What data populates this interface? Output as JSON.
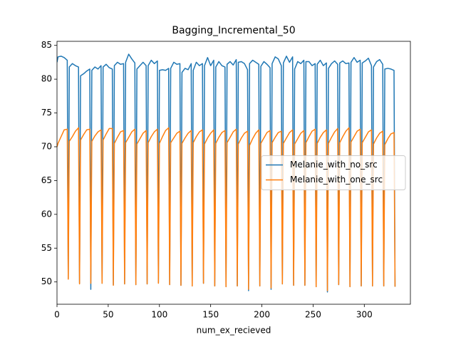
{
  "chart_data": {
    "type": "line",
    "title": "Bagging_Incremental_50",
    "xlabel": "num_ex_recieved",
    "x": [
      0,
      1,
      4,
      7,
      10,
      11,
      12,
      15,
      18,
      21,
      22,
      23,
      26,
      29,
      32,
      33,
      34,
      37,
      40,
      43,
      44,
      45,
      48,
      51,
      54,
      55,
      56,
      59,
      62,
      65,
      66,
      67,
      70,
      73,
      76,
      77,
      78,
      81,
      84,
      87,
      88,
      89,
      92,
      95,
      98,
      99,
      100,
      103,
      106,
      109,
      110,
      111,
      114,
      117,
      120,
      121,
      122,
      125,
      128,
      131,
      132,
      133,
      136,
      139,
      142,
      143,
      144,
      147,
      150,
      153,
      154,
      155,
      158,
      161,
      164,
      165,
      166,
      169,
      172,
      175,
      176,
      177,
      180,
      183,
      186,
      187,
      188,
      191,
      194,
      197,
      198,
      199,
      202,
      205,
      208,
      209,
      210,
      213,
      216,
      219,
      220,
      221,
      224,
      227,
      230,
      231,
      232,
      235,
      238,
      241,
      242,
      243,
      246,
      249,
      252,
      253,
      254,
      257,
      260,
      263,
      264,
      265,
      268,
      271,
      274,
      275,
      276,
      279,
      282,
      285,
      286,
      287,
      290,
      293,
      296,
      297,
      298,
      301,
      304,
      307,
      308,
      309,
      312,
      315,
      318,
      319,
      320,
      323,
      326,
      329,
      330
    ],
    "series": [
      {
        "name": "Melanie_with_no_src",
        "color": "#1f77b4",
        "values": [
          82.5,
          83.3,
          83.4,
          83.2,
          82.8,
          50.5,
          81.8,
          82.3,
          82,
          81.8,
          49.8,
          80.5,
          80.8,
          81.2,
          81.5,
          48.9,
          81.3,
          81.8,
          81.5,
          82,
          49.8,
          81.8,
          82.2,
          81.7,
          81.5,
          49.6,
          82,
          82.5,
          82.2,
          82.3,
          49.7,
          82.5,
          83.7,
          83,
          82.4,
          49.6,
          81.5,
          82,
          82.5,
          82,
          49.7,
          82,
          82.8,
          82.3,
          82.7,
          49.9,
          81.3,
          81.4,
          81.3,
          81.6,
          49.6,
          81.6,
          82.5,
          82.2,
          82.3,
          49.5,
          81,
          81.6,
          81.4,
          82.3,
          49.4,
          81.3,
          82.5,
          82,
          82.3,
          49.8,
          82,
          83.2,
          82,
          82.8,
          49.4,
          81.8,
          82.6,
          82,
          81.8,
          49.3,
          82.2,
          82.6,
          82.1,
          82.9,
          49.4,
          82.5,
          82.6,
          82.3,
          81.4,
          48.7,
          82.3,
          82.8,
          82.5,
          82.2,
          49.4,
          81.9,
          82.6,
          82.2,
          81.7,
          48.9,
          82.3,
          83.3,
          83,
          82,
          49.7,
          82.4,
          83.4,
          82.5,
          83.3,
          49.5,
          81.5,
          82.6,
          82.3,
          82.8,
          49.5,
          82.6,
          82.6,
          82,
          82.3,
          49.3,
          82.2,
          82.8,
          82,
          82.4,
          48.5,
          81.6,
          82.3,
          82.7,
          82.2,
          49.6,
          82.4,
          82.7,
          82.3,
          82.4,
          49.3,
          82.5,
          83.2,
          82.5,
          82.8,
          49.4,
          82.4,
          82.7,
          83.1,
          82,
          49.4,
          81.8,
          82.6,
          82.9,
          82.2,
          49.4,
          81.5,
          81.6,
          81.5,
          81.3,
          49.3
        ]
      },
      {
        "name": "Melanie_with_one_src",
        "color": "#ff7f0e",
        "values": [
          70,
          70.5,
          71.5,
          72.5,
          72.6,
          50.4,
          70.8,
          71.5,
          72.3,
          72.8,
          49.7,
          71,
          71.8,
          72.5,
          72.6,
          49.8,
          70.8,
          71.6,
          72.2,
          72.5,
          49.8,
          71,
          71.9,
          72.7,
          72.7,
          49.5,
          70.5,
          71.4,
          72.2,
          72.4,
          49.7,
          70.6,
          71.4,
          72.2,
          72.6,
          49.6,
          70.4,
          71.2,
          72,
          72.4,
          49.7,
          70.6,
          71.5,
          72.2,
          72.6,
          49.8,
          70.5,
          71.5,
          72.4,
          72.8,
          49.6,
          70.6,
          71.3,
          72,
          72.3,
          49.5,
          70.5,
          71.3,
          72,
          72.4,
          49.4,
          70.6,
          71.5,
          72.2,
          72.5,
          49.8,
          70.4,
          71.3,
          72,
          72.5,
          49.4,
          70.5,
          71.4,
          72.1,
          72.4,
          49.3,
          70.6,
          71.4,
          72.2,
          72.6,
          49.4,
          70.4,
          71.3,
          72,
          72.3,
          48.9,
          70.2,
          71.2,
          72,
          72.5,
          49.4,
          70.5,
          71.3,
          72.1,
          72.4,
          49.1,
          70.6,
          71.4,
          72.1,
          72.3,
          49.7,
          70.5,
          71.3,
          72.1,
          72.5,
          49.5,
          70.4,
          71.2,
          72,
          72.4,
          49.5,
          70.6,
          71.5,
          72.3,
          72.6,
          49.3,
          70.5,
          71.4,
          72.1,
          72.5,
          48.7,
          70.5,
          71.4,
          72.2,
          72.7,
          49.6,
          70.6,
          71.5,
          72.3,
          72.8,
          49.3,
          70.7,
          71.5,
          72.3,
          72.6,
          49.4,
          70.6,
          71.4,
          72.2,
          72.5,
          49.4,
          70.4,
          71.3,
          72,
          72.3,
          49.4,
          70.3,
          71.2,
          71.9,
          72.1,
          49.3
        ]
      }
    ],
    "xlim": [
      0,
      345
    ],
    "xticks": [
      0,
      50,
      100,
      150,
      200,
      250,
      300
    ],
    "ylim": [
      46.7,
      85.6
    ],
    "yticks": [
      50,
      55,
      60,
      65,
      70,
      75,
      80,
      85
    ],
    "legend": "center right"
  }
}
